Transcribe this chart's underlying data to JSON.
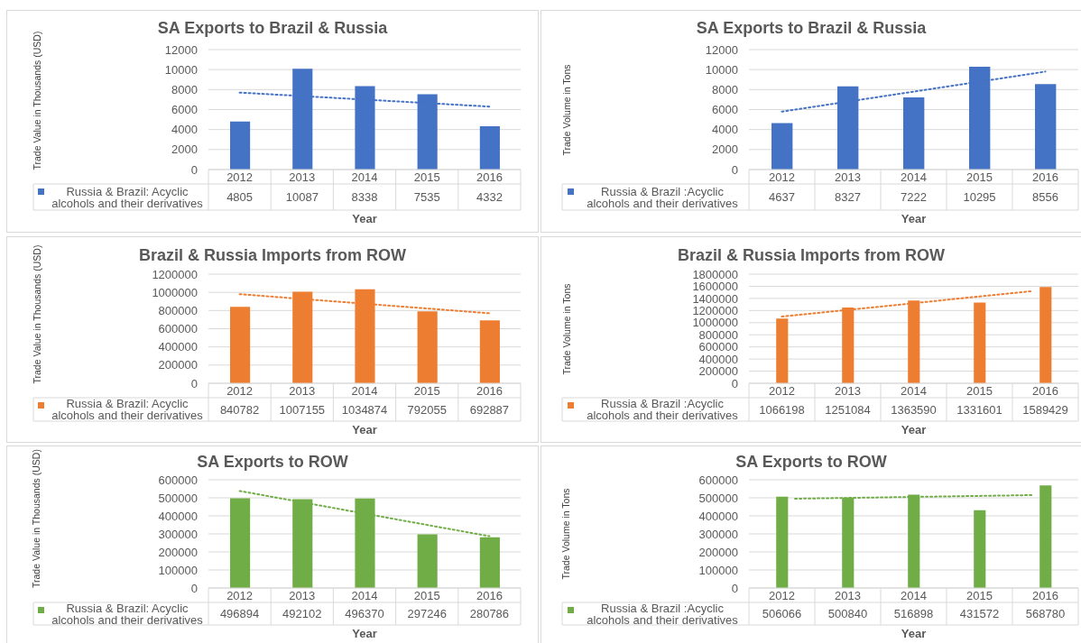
{
  "chart_data": [
    {
      "type": "bar",
      "title": "SA Exports to Brazil & Russia",
      "xlabel": "Year",
      "ylabel": "Trade Value in Thousands (USD)",
      "x": [
        2012,
        2013,
        2014,
        2015,
        2016
      ],
      "xlim": [
        2011.5,
        2016.5
      ],
      "xticks": [
        2012,
        2013,
        2014,
        2015,
        2016
      ],
      "ylim": [
        0,
        12000
      ],
      "yticks": [
        0,
        2000,
        4000,
        6000,
        8000,
        10000,
        12000
      ],
      "grid": "y",
      "legend": "bottom",
      "series": [
        {
          "name": "Russia & Brazil: Acyclic alcohols and their derivatives",
          "color": "#4472c4",
          "values": [
            4805,
            10087,
            8338,
            7535,
            4332
          ],
          "value_labels": [
            "4805",
            "10087",
            "8338",
            "7535",
            "4332"
          ]
        },
        {
          "type": "line",
          "x": [
            2012,
            2016
          ],
          "values": [
            7700,
            6300
          ],
          "color": "#4472c4",
          "line_style": "dotted"
        }
      ]
    },
    {
      "type": "bar",
      "title": "SA Exports to Brazil & Russia",
      "xlabel": "Year",
      "ylabel": "Trade Volume in Tons",
      "x": [
        2012,
        2013,
        2014,
        2015,
        2016
      ],
      "xlim": [
        2011.5,
        2016.5
      ],
      "xticks": [
        2012,
        2013,
        2014,
        2015,
        2016
      ],
      "ylim": [
        0,
        12000
      ],
      "yticks": [
        0,
        2000,
        4000,
        6000,
        8000,
        10000,
        12000
      ],
      "grid": "y",
      "legend": "bottom",
      "series": [
        {
          "name": "Russia & Brazil :Acyclic alcohols and their derivatives",
          "color": "#4472c4",
          "values": [
            4637,
            8327,
            7222,
            10295,
            8556
          ],
          "value_labels": [
            "4637",
            "8327",
            "7222",
            "10295",
            "8556"
          ]
        },
        {
          "type": "line",
          "x": [
            2012,
            2016
          ],
          "values": [
            5800,
            9800
          ],
          "color": "#4472c4",
          "line_style": "dotted"
        }
      ]
    },
    {
      "type": "bar",
      "title": "Brazil & Russia Imports from ROW",
      "xlabel": "Year",
      "ylabel": "Trade Value in Thousands (USD)",
      "x": [
        2012,
        2013,
        2014,
        2015,
        2016
      ],
      "xlim": [
        2011.5,
        2016.5
      ],
      "xticks": [
        2012,
        2013,
        2014,
        2015,
        2016
      ],
      "ylim": [
        0,
        1200000
      ],
      "yticks": [
        0,
        200000,
        400000,
        600000,
        800000,
        1000000,
        1200000
      ],
      "grid": "y",
      "legend": "bottom",
      "series": [
        {
          "name": "Russia & Brazil: Acyclic alcohols and their derivatives",
          "color": "#ed7d31",
          "values": [
            840782,
            1007155,
            1034874,
            792055,
            692887
          ],
          "value_labels": [
            "840782",
            "1007155",
            "1034874",
            "792055",
            "692887"
          ]
        },
        {
          "type": "line",
          "x": [
            2012,
            2016
          ],
          "values": [
            980000,
            770000
          ],
          "color": "#ed7d31",
          "line_style": "dotted"
        }
      ]
    },
    {
      "type": "bar",
      "title": "Brazil & Russia Imports from ROW",
      "xlabel": "Year",
      "ylabel": "Trade Volume in Tons",
      "x": [
        2012,
        2013,
        2014,
        2015,
        2016
      ],
      "xlim": [
        2011.5,
        2016.5
      ],
      "xticks": [
        2012,
        2013,
        2014,
        2015,
        2016
      ],
      "ylim": [
        0,
        1800000
      ],
      "yticks": [
        0,
        200000,
        400000,
        600000,
        800000,
        1000000,
        1200000,
        1400000,
        1600000,
        1800000
      ],
      "grid": "y",
      "legend": "bottom",
      "series": [
        {
          "name": "Russia & Brazil :Acyclic alcohols and their derivatives",
          "color": "#ed7d31",
          "values": [
            1066198,
            1251084,
            1363590,
            1331601,
            1589429
          ],
          "value_labels": [
            "1066198",
            "1251084",
            "1363590",
            "1331601",
            "1589429"
          ]
        },
        {
          "type": "line",
          "x": [
            2012,
            2015.8
          ],
          "values": [
            1100000,
            1520000
          ],
          "color": "#ed7d31",
          "line_style": "dotted"
        }
      ]
    },
    {
      "type": "bar",
      "title": "SA Exports to ROW",
      "xlabel": "Year",
      "ylabel": "Trade Value in Thousands (USD)",
      "x": [
        2012,
        2013,
        2014,
        2015,
        2016
      ],
      "xlim": [
        2011.5,
        2016.5
      ],
      "xticks": [
        2012,
        2013,
        2014,
        2015,
        2016
      ],
      "ylim": [
        0,
        600000
      ],
      "yticks": [
        0,
        100000,
        200000,
        300000,
        400000,
        500000,
        600000
      ],
      "grid": "y",
      "legend": "bottom",
      "series": [
        {
          "name": "Russia & Brazil: Acyclic alcohols and their derivatives",
          "color": "#70ad47",
          "values": [
            496894,
            492102,
            496370,
            297246,
            280786
          ],
          "value_labels": [
            "496894",
            "492102",
            "496370",
            "297246",
            "280786"
          ]
        },
        {
          "type": "line",
          "x": [
            2012,
            2016
          ],
          "values": [
            538000,
            287000
          ],
          "color": "#70ad47",
          "line_style": "dotted"
        }
      ]
    },
    {
      "type": "bar",
      "title": "SA Exports to ROW",
      "xlabel": "Year",
      "ylabel": "Trade Volume in Tons",
      "x": [
        2012,
        2013,
        2014,
        2015,
        2016
      ],
      "xlim": [
        2011.5,
        2016.5
      ],
      "xticks": [
        2012,
        2013,
        2014,
        2015,
        2016
      ],
      "ylim": [
        0,
        600000
      ],
      "yticks": [
        0,
        100000,
        200000,
        300000,
        400000,
        500000,
        600000
      ],
      "grid": "y",
      "legend": "bottom",
      "series": [
        {
          "name": "Russia & Brazil :Acyclic alcohols and their derivatives",
          "color": "#70ad47",
          "values": [
            506066,
            500840,
            516898,
            431572,
            568780
          ],
          "value_labels": [
            "506066",
            "500840",
            "516898",
            "431572",
            "568780"
          ]
        },
        {
          "type": "line",
          "x": [
            2012.2,
            2015.8
          ],
          "values": [
            495000,
            515000
          ],
          "color": "#70ad47",
          "line_style": "dotted"
        }
      ]
    }
  ]
}
